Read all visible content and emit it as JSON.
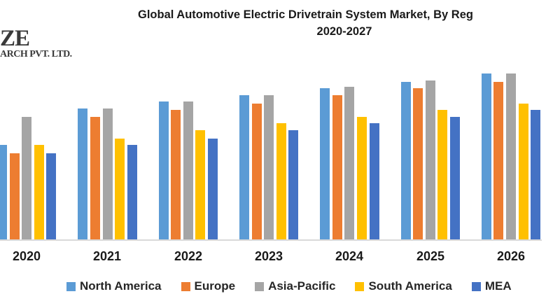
{
  "logo": {
    "line1": "ZE",
    "line2": "ARCH PVT. LTD."
  },
  "title": {
    "line1": "Global Automotive Electric Drivetrain System Market, By Reg",
    "line2": "2020-2027"
  },
  "chart_data": {
    "type": "bar",
    "title": "Global Automotive Electric Drivetrain System Market, By Reg",
    "subtitle": "2020-2027",
    "xlabel": "",
    "ylabel": "",
    "note": "No y-axis or value labels are shown; values are relative units with the tallest bar (North America / Asia-Pacific 2026) = 100",
    "ylim": [
      0,
      100
    ],
    "grid": false,
    "legend_position": "bottom",
    "axis_line_color": "#D9D9D9",
    "label_color": "#1A1A1A",
    "categories": [
      "2020",
      "2021",
      "2022",
      "2023",
      "2024",
      "2025",
      "2026"
    ],
    "series": [
      {
        "name": "North America",
        "color": "#5B9BD5",
        "values": [
          57,
          79,
          83,
          87,
          91,
          95,
          100
        ]
      },
      {
        "name": "Europe",
        "color": "#ED7D31",
        "values": [
          52,
          74,
          78,
          82,
          87,
          91,
          95
        ]
      },
      {
        "name": "Asia-Pacific",
        "color": "#A5A5A5",
        "values": [
          74,
          79,
          83,
          87,
          92,
          96,
          100
        ]
      },
      {
        "name": "South America",
        "color": "#FFC000",
        "values": [
          57,
          61,
          66,
          70,
          74,
          78,
          82
        ]
      },
      {
        "name": "MEA",
        "color": "#4472C4",
        "values": [
          52,
          57,
          61,
          66,
          70,
          74,
          78
        ]
      }
    ]
  }
}
